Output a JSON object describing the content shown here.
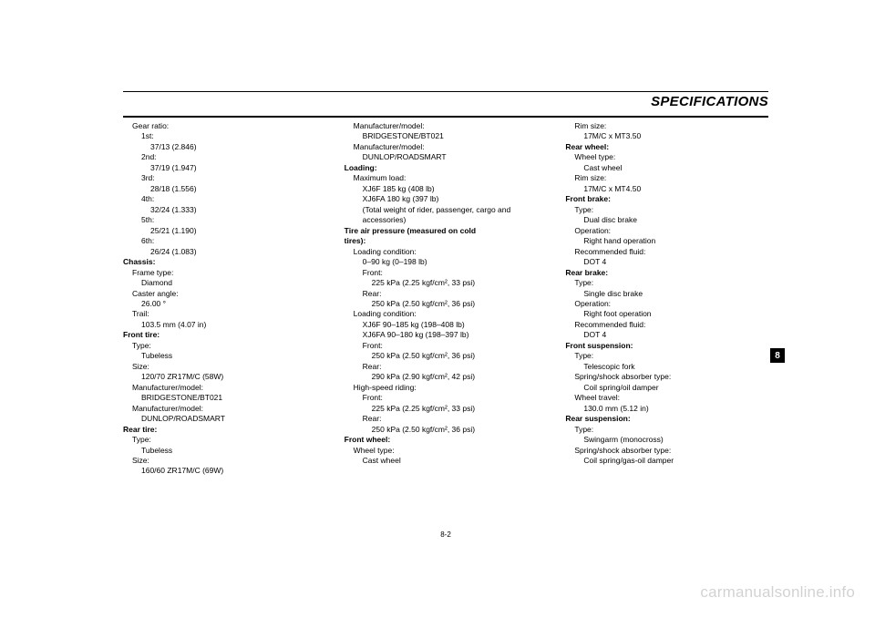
{
  "header": {
    "title": "SPECIFICATIONS"
  },
  "page_number": "8-2",
  "tab": "8",
  "watermark": "carmanualsonline.info",
  "col1": {
    "gear_ratio_lbl": "Gear ratio:",
    "g1_lbl": "1st:",
    "g1_val": "37/13 (2.846)",
    "g2_lbl": "2nd:",
    "g2_val": "37/19 (1.947)",
    "g3_lbl": "3rd:",
    "g3_val": "28/18 (1.556)",
    "g4_lbl": "4th:",
    "g4_val": "32/24 (1.333)",
    "g5_lbl": "5th:",
    "g5_val": "25/21 (1.190)",
    "g6_lbl": "6th:",
    "g6_val": "26/24 (1.083)",
    "chassis_hdr": "Chassis:",
    "frame_type_lbl": "Frame type:",
    "frame_type_val": "Diamond",
    "caster_lbl": "Caster angle:",
    "caster_val": "26.00 °",
    "trail_lbl": "Trail:",
    "trail_val": "103.5 mm (4.07 in)",
    "front_tire_hdr": "Front tire:",
    "ft_type_lbl": "Type:",
    "ft_type_val": "Tubeless",
    "ft_size_lbl": "Size:",
    "ft_size_val": "120/70 ZR17M/C (58W)",
    "ft_mfg1_lbl": "Manufacturer/model:",
    "ft_mfg1_val": "BRIDGESTONE/BT021",
    "ft_mfg2_lbl": "Manufacturer/model:",
    "ft_mfg2_val": "DUNLOP/ROADSMART",
    "rear_tire_hdr": "Rear tire:",
    "rt_type_lbl": "Type:",
    "rt_type_val": "Tubeless",
    "rt_size_lbl": "Size:",
    "rt_size_val": "160/60 ZR17M/C (69W)"
  },
  "col2": {
    "rt_mfg1_lbl": "Manufacturer/model:",
    "rt_mfg1_val": "BRIDGESTONE/BT021",
    "rt_mfg2_lbl": "Manufacturer/model:",
    "rt_mfg2_val": "DUNLOP/ROADSMART",
    "loading_hdr": "Loading:",
    "maxload_lbl": "Maximum load:",
    "maxload_v1": "XJ6F 185 kg (408 lb)",
    "maxload_v2": "XJ6FA 180 kg (397 lb)",
    "maxload_note": "(Total weight of rider, passenger, cargo and accessories)",
    "tap_hdr1": "Tire air pressure (measured on cold",
    "tap_hdr2": "tires):",
    "lc1_lbl": "Loading condition:",
    "lc1_val": "0–90 kg (0–198 lb)",
    "lc1_f_lbl": "Front:",
    "lc1_f_val": "225 kPa (2.25 kgf/cm², 33 psi)",
    "lc1_r_lbl": "Rear:",
    "lc1_r_val": "250 kPa (2.50 kgf/cm², 36 psi)",
    "lc2_lbl": "Loading condition:",
    "lc2_v1": "XJ6F 90–185 kg (198–408 lb)",
    "lc2_v2": "XJ6FA 90–180 kg (198–397 lb)",
    "lc2_f_lbl": "Front:",
    "lc2_f_val": "250 kPa (2.50 kgf/cm², 36 psi)",
    "lc2_r_lbl": "Rear:",
    "lc2_r_val": "290 kPa (2.90 kgf/cm², 42 psi)",
    "hs_lbl": "High-speed riding:",
    "hs_f_lbl": "Front:",
    "hs_f_val": "225 kPa (2.25 kgf/cm², 33 psi)",
    "hs_r_lbl": "Rear:",
    "hs_r_val": "250 kPa (2.50 kgf/cm², 36 psi)",
    "fw_hdr": "Front wheel:",
    "fw_type_lbl": "Wheel type:",
    "fw_type_val": "Cast wheel"
  },
  "col3": {
    "fw_rim_lbl": "Rim size:",
    "fw_rim_val": "17M/C x MT3.50",
    "rw_hdr": "Rear wheel:",
    "rw_type_lbl": "Wheel type:",
    "rw_type_val": "Cast wheel",
    "rw_rim_lbl": "Rim size:",
    "rw_rim_val": "17M/C x MT4.50",
    "fb_hdr": "Front brake:",
    "fb_type_lbl": "Type:",
    "fb_type_val": "Dual disc brake",
    "fb_op_lbl": "Operation:",
    "fb_op_val": "Right hand operation",
    "fb_fluid_lbl": "Recommended fluid:",
    "fb_fluid_val": "DOT 4",
    "rb_hdr": "Rear brake:",
    "rb_type_lbl": "Type:",
    "rb_type_val": "Single disc brake",
    "rb_op_lbl": "Operation:",
    "rb_op_val": "Right foot operation",
    "rb_fluid_lbl": "Recommended fluid:",
    "rb_fluid_val": "DOT 4",
    "fs_hdr": "Front suspension:",
    "fs_type_lbl": "Type:",
    "fs_type_val": "Telescopic fork",
    "fs_ss_lbl": "Spring/shock absorber type:",
    "fs_ss_val": "Coil spring/oil damper",
    "fs_wt_lbl": "Wheel travel:",
    "fs_wt_val": "130.0 mm (5.12 in)",
    "rs_hdr": "Rear suspension:",
    "rs_type_lbl": "Type:",
    "rs_type_val": "Swingarm (monocross)",
    "rs_ss_lbl": "Spring/shock absorber type:",
    "rs_ss_val": "Coil spring/gas-oil damper"
  }
}
